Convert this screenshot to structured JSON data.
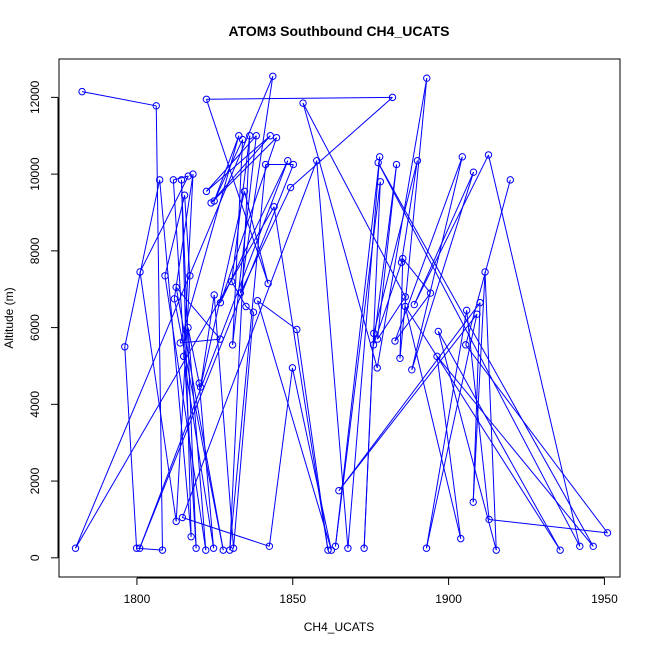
{
  "chart_data": {
    "type": "line",
    "title": "ATOM3 Southbound CH4_UCATS",
    "xlabel": "CH4_UCATS",
    "ylabel": "Altitude (m)",
    "xlim": [
      1775,
      1955
    ],
    "ylim": [
      -500,
      13000
    ],
    "x_ticks": [
      1800,
      1850,
      1900,
      1950
    ],
    "y_ticks": [
      0,
      2000,
      4000,
      6000,
      8000,
      10000,
      12000
    ],
    "grid": false,
    "legend": "none",
    "series_color": "#0000ff",
    "series": [
      {
        "marker": "open-circle",
        "points": [
          [
            1782.4,
            12150
          ],
          [
            1806.2,
            11780
          ],
          [
            1808.2,
            200
          ],
          [
            1799.9,
            250
          ],
          [
            1796.1,
            5500
          ],
          [
            1807.3,
            9850
          ],
          [
            1817.4,
            550
          ],
          [
            1814.3,
            9850
          ],
          [
            1819.0,
            250
          ],
          [
            1811.7,
            9850
          ],
          [
            1816.5,
            9950
          ],
          [
            1801.0,
            7450
          ],
          [
            1812.6,
            950
          ],
          [
            1817.0,
            7350
          ],
          [
            1815.3,
            9450
          ],
          [
            1809.0,
            7350
          ],
          [
            1822.1,
            200
          ],
          [
            1816.4,
            6000
          ],
          [
            1820.0,
            4550
          ],
          [
            1824.6,
            250
          ],
          [
            1815.0,
            5250
          ],
          [
            1818.0,
            10000
          ],
          [
            1812.0,
            6750
          ],
          [
            1827.7,
            200
          ],
          [
            1812.6,
            7050
          ],
          [
            1826.7,
            5700
          ],
          [
            1813.9,
            5600
          ],
          [
            1832.7,
            11000
          ],
          [
            1824.8,
            9300
          ],
          [
            1833.9,
            10900
          ],
          [
            1830.7,
            5550
          ],
          [
            1838.3,
            11000
          ],
          [
            1822.3,
            9550
          ],
          [
            1842.8,
            11000
          ],
          [
            1823.8,
            9250
          ],
          [
            1844.8,
            10950
          ],
          [
            1826.8,
            6650
          ],
          [
            1848.4,
            10350
          ],
          [
            1800.9,
            250
          ],
          [
            1850.2,
            10250
          ],
          [
            1841.3,
            10250
          ],
          [
            1829.8,
            200
          ],
          [
            1836.2,
            11000
          ],
          [
            1830.4,
            7200
          ],
          [
            1835.0,
            6550
          ],
          [
            1837.4,
            6400
          ],
          [
            1831.0,
            250
          ],
          [
            1824.8,
            6850
          ],
          [
            1820.4,
            4450
          ],
          [
            1834.5,
            9550
          ],
          [
            1842.1,
            7150
          ],
          [
            1822.3,
            11950
          ],
          [
            1882.0,
            12000
          ],
          [
            1849.3,
            9650
          ],
          [
            1833.2,
            6900
          ],
          [
            1843.6,
            12550
          ],
          [
            1780.3,
            250
          ],
          [
            1844.0,
            9150
          ],
          [
            1861.3,
            200
          ],
          [
            1851.3,
            5950
          ],
          [
            1838.7,
            6700
          ],
          [
            1862.4,
            200
          ],
          [
            1849.9,
            4950
          ],
          [
            1842.5,
            300
          ],
          [
            1814.6,
            1050
          ],
          [
            1857.7,
            10350
          ],
          [
            1867.7,
            250
          ],
          [
            1877.9,
            10450
          ],
          [
            1863.7,
            300
          ],
          [
            1878.1,
            9800
          ],
          [
            1872.9,
            250
          ],
          [
            1876.0,
            5850
          ],
          [
            1890.0,
            10350
          ],
          [
            1884.9,
            7700
          ],
          [
            1875.9,
            5550
          ],
          [
            1883.3,
            10250
          ],
          [
            1877.2,
            5700
          ],
          [
            1886.1,
            6800
          ],
          [
            1853.3,
            11850
          ],
          [
            1877.1,
            4950
          ],
          [
            1893.0,
            12500
          ],
          [
            1884.4,
            5200
          ],
          [
            1885.3,
            7800
          ],
          [
            1894.2,
            6900
          ],
          [
            1882.8,
            5650
          ],
          [
            1904.4,
            10450
          ],
          [
            1888.2,
            4900
          ],
          [
            1908.0,
            10050
          ],
          [
            1889.0,
            6600
          ],
          [
            1912.8,
            10500
          ],
          [
            1942.1,
            300
          ],
          [
            1877.4,
            10300
          ],
          [
            1946.4,
            300
          ],
          [
            1896.3,
            5250
          ],
          [
            1903.9,
            500
          ],
          [
            1886.1,
            6550
          ],
          [
            1935.8,
            200
          ],
          [
            1896.7,
            5900
          ],
          [
            1915.3,
            200
          ],
          [
            1911.7,
            7450
          ],
          [
            1907.9,
            1450
          ],
          [
            1910.1,
            6650
          ],
          [
            1864.8,
            1750
          ],
          [
            1909.1,
            6350
          ],
          [
            1892.9,
            250
          ],
          [
            1905.8,
            6450
          ],
          [
            1913.0,
            1000
          ],
          [
            1951.0,
            650
          ],
          [
            1905.5,
            5550
          ],
          [
            1919.8,
            9850
          ]
        ]
      }
    ]
  }
}
